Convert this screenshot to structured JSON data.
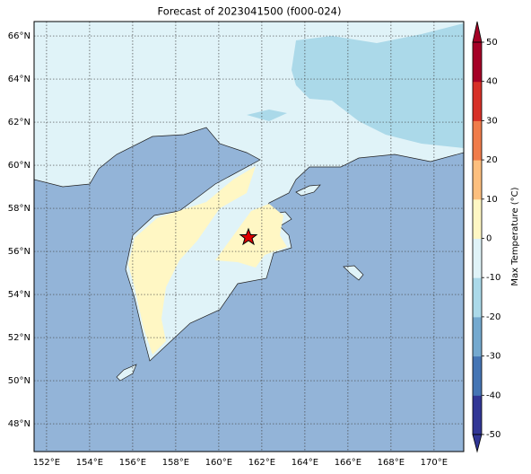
{
  "chart_data": {
    "type": "map",
    "title": "Forecast of 2023041500 (f000-024)",
    "xlim": [
      151.42,
      171.38
    ],
    "ylim": [
      46.71,
      66.67
    ],
    "xticks": [
      {
        "value": 152,
        "label": "152°E"
      },
      {
        "value": 154,
        "label": "154°E"
      },
      {
        "value": 156,
        "label": "156°E"
      },
      {
        "value": 158,
        "label": "158°E"
      },
      {
        "value": 160,
        "label": "160°E"
      },
      {
        "value": 162,
        "label": "162°E"
      },
      {
        "value": 164,
        "label": "164°E"
      },
      {
        "value": 166,
        "label": "166°E"
      },
      {
        "value": 168,
        "label": "168°E"
      },
      {
        "value": 170,
        "label": "170°E"
      }
    ],
    "yticks": [
      {
        "value": 48,
        "label": "48°N"
      },
      {
        "value": 50,
        "label": "50°N"
      },
      {
        "value": 52,
        "label": "52°N"
      },
      {
        "value": 54,
        "label": "54°N"
      },
      {
        "value": 56,
        "label": "56°N"
      },
      {
        "value": 58,
        "label": "58°N"
      },
      {
        "value": 60,
        "label": "60°N"
      },
      {
        "value": 62,
        "label": "62°N"
      },
      {
        "value": 64,
        "label": "64°N"
      },
      {
        "value": 66,
        "label": "66°N"
      }
    ],
    "grid": true,
    "colorbar": {
      "label": "Max Temperature (°C)",
      "lim": [
        -50,
        50
      ],
      "ticks": [
        -50,
        -40,
        -30,
        -20,
        -10,
        0,
        10,
        20,
        30,
        40,
        50
      ],
      "colors": [
        "#313695",
        "#4575b4",
        "#74a9cf",
        "#abd9e9",
        "#e0f3f8",
        "#fff7c4",
        "#fdbf7e",
        "#f07c4a",
        "#d73027",
        "#a50026"
      ]
    }
  }
}
